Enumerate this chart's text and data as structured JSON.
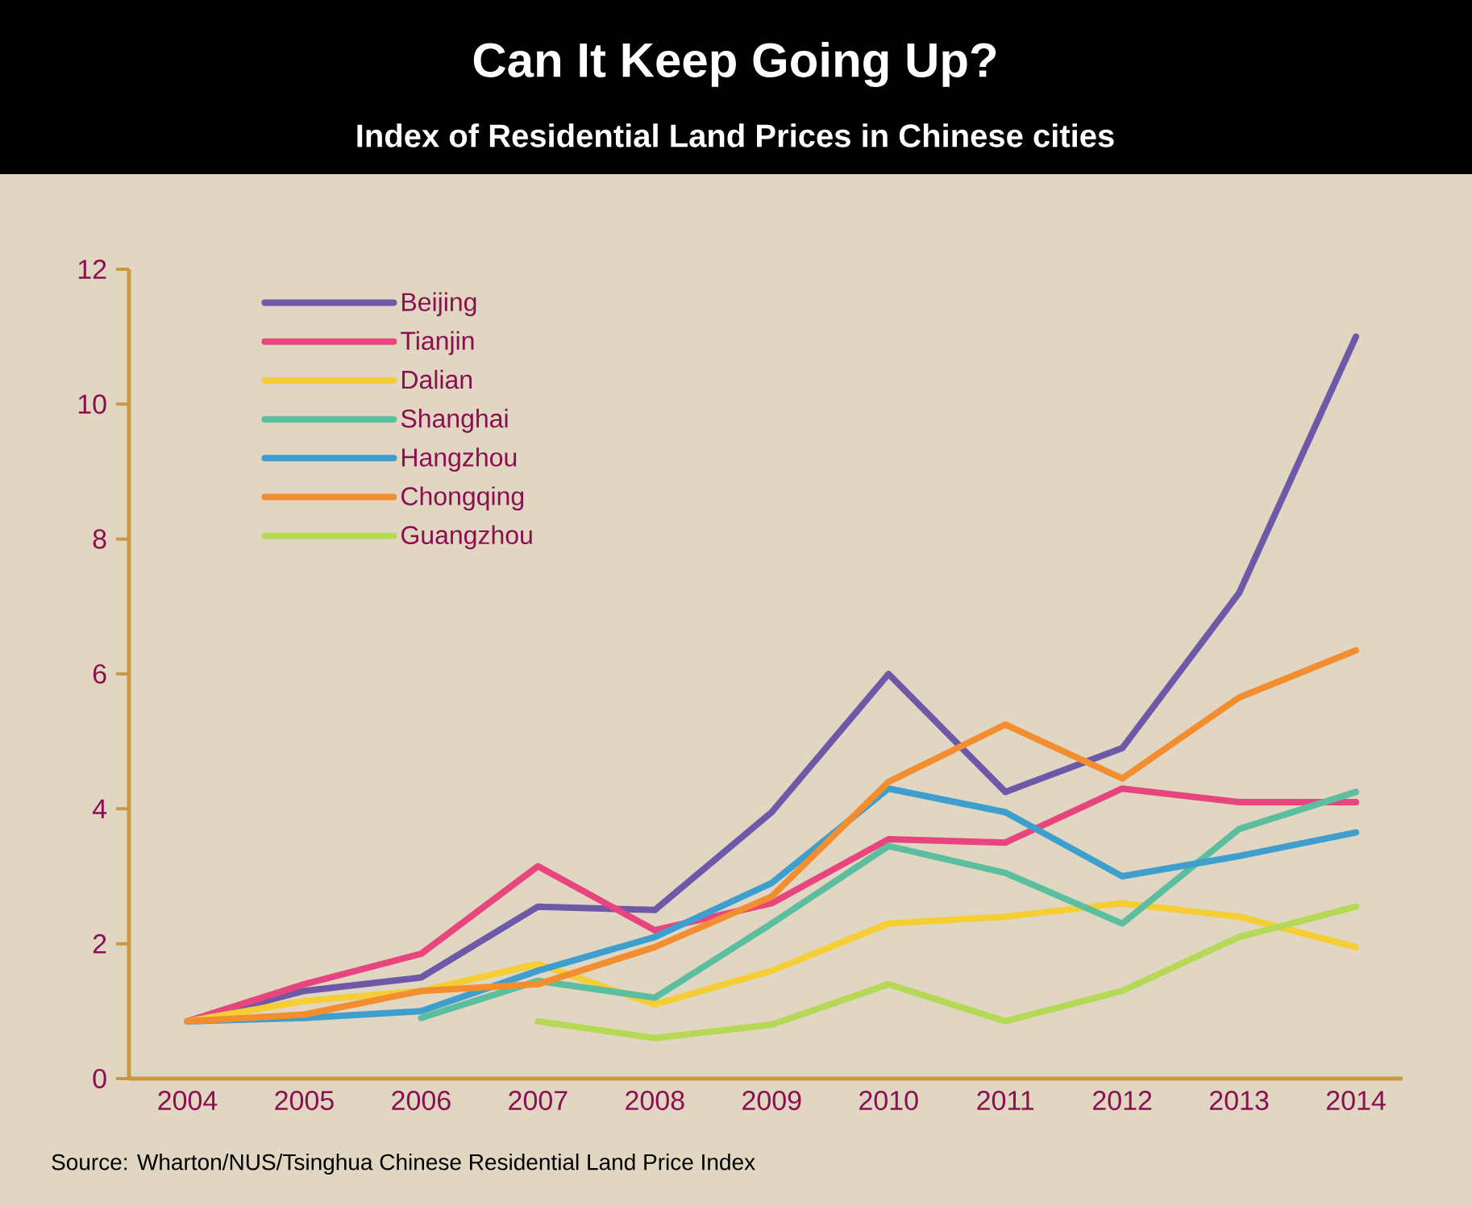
{
  "chart_data": {
    "type": "line",
    "title": "Can It Keep Going Up?",
    "subtitle": "Index of Residential Land Prices in Chinese cities",
    "x": [
      2004,
      2005,
      2006,
      2007,
      2008,
      2009,
      2010,
      2011,
      2012,
      2013,
      2014
    ],
    "xlim": [
      2003.5,
      2014.4
    ],
    "xticks": [
      2004,
      2005,
      2006,
      2007,
      2008,
      2009,
      2010,
      2011,
      2012,
      2013,
      2014
    ],
    "ylim": [
      0,
      12
    ],
    "yticks": [
      0,
      2,
      4,
      6,
      8,
      10,
      12
    ],
    "grid": false,
    "legend": "top left",
    "marker": "none",
    "line_style": "solid",
    "series": [
      {
        "name": "Beijing",
        "color": "#6e58a8",
        "values": [
          0.85,
          1.3,
          1.5,
          2.55,
          2.5,
          3.95,
          6.0,
          4.25,
          4.9,
          7.2,
          11.0
        ]
      },
      {
        "name": "Tianjin",
        "color": "#e8457f",
        "values": [
          0.85,
          1.4,
          1.85,
          3.15,
          2.2,
          2.6,
          3.55,
          3.5,
          4.3,
          4.1,
          4.1
        ]
      },
      {
        "name": "Dalian",
        "color": "#f5cd35",
        "values": [
          0.85,
          1.15,
          1.3,
          1.7,
          1.1,
          1.6,
          2.3,
          2.4,
          2.6,
          2.4,
          1.95
        ]
      },
      {
        "name": "Shanghai",
        "color": "#5bbf9f",
        "values": [
          null,
          null,
          0.9,
          1.45,
          1.2,
          2.3,
          3.45,
          3.05,
          2.3,
          3.7,
          4.25
        ]
      },
      {
        "name": "Hangzhou",
        "color": "#3e9fcf",
        "values": [
          0.85,
          0.9,
          1.0,
          1.6,
          2.1,
          2.9,
          4.3,
          3.95,
          3.0,
          3.3,
          3.65
        ]
      },
      {
        "name": "Chongqing",
        "color": "#f28e30",
        "values": [
          0.85,
          0.95,
          1.3,
          1.4,
          1.95,
          2.7,
          4.4,
          5.25,
          4.45,
          5.65,
          6.35
        ]
      },
      {
        "name": "Guangzhou",
        "color": "#b5d855",
        "values": [
          null,
          null,
          null,
          0.85,
          0.6,
          0.8,
          1.4,
          0.85,
          1.3,
          2.1,
          2.55
        ]
      }
    ],
    "annotations": [
      "Source: Wharton/NUS/Tsinghua Chinese Residential Land Price Index"
    ]
  }
}
